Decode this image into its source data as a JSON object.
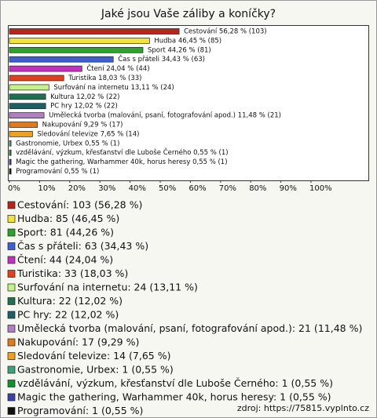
{
  "chart_data": {
    "type": "bar",
    "orientation": "horizontal",
    "title": "Jaké jsou Vaše záliby a koníčky?",
    "categories": [
      "Cestování: 103 (56,28 %)",
      "Hudba: 85 (46,45 %)",
      "Sport: 81 (44,26 %)",
      "Čas s přáteli: 63 (34,43 %)",
      "Čtení: 44 (24,04 %)",
      "Turistika: 33 (18,03 %)",
      "Surfování na internetu: 24 (13,11 %)",
      "Kultura: 22 (12,02 %)",
      "PC hry: 22 (12,02 %)",
      "Umělecká tvorba (malování, psaní, fotografování apod.): 21 (11,48 %)",
      "Nakupování: 17 (9,29 %)",
      "Sledování televize: 14 (7,65 %)",
      "Gastronomie, Urbex: 1 (0,55 %)",
      "vzdělávání, výzkum, křesťanství dle Luboše Černého: 1 (0,55 %)",
      "Magic the gathering, Warhammer 40k, horus heresy: 1 (0,55 %)",
      "Programování: 1 (0,55 %)"
    ],
    "values": [
      56.28,
      46.45,
      44.26,
      34.43,
      24.04,
      18.03,
      13.11,
      12.02,
      12.02,
      11.48,
      9.29,
      7.65,
      0.55,
      0.55,
      0.55,
      0.55
    ],
    "value_labels": [
      "Cestování 56,28 % (103)",
      "Hudba 46,45 % (85)",
      "Sport 44,26 % (81)",
      "Čas s přáteli 34,43 % (63)",
      "Čtení 24,04 % (44)",
      "Turistika 18,03 % (33)",
      "Surfování na internetu 13,11 % (24)",
      "Kultura 12,02 % (22)",
      "PC hry 12,02 % (22)",
      "Umělecká tvorba (malování, psaní, fotografování apod.) 11,48 % (21)",
      "Nakupování 9,29 % (17)",
      "Sledování televize 7,65 % (14)",
      "Gastronomie, Urbex 0,55 % (1)",
      "vzdělávání, výzkum, křesťanství dle Luboše Černého 0,55 % (1)",
      "Magic the gathering, Warhammer 40k, horus heresy 0,55 % (1)",
      "Programování 0,55 % (1)"
    ],
    "colors": [
      "#b8261b",
      "#f2e23c",
      "#2fa12f",
      "#3f5fd0",
      "#c22fc2",
      "#e0401e",
      "#c6f08a",
      "#1f7050",
      "#1f5f66",
      "#b07fc2",
      "#e07a1e",
      "#f0a020",
      "#3fa080",
      "#10902f",
      "#3f3fa8",
      "#111111"
    ],
    "xlim": [
      0,
      100
    ],
    "xticks": [
      {
        "value": 0,
        "label": "0%"
      },
      {
        "value": 10,
        "label": "10%"
      },
      {
        "value": 20,
        "label": "20%"
      },
      {
        "value": 30,
        "label": "30%"
      },
      {
        "value": 40,
        "label": "40%"
      },
      {
        "value": 50,
        "label": "50%"
      },
      {
        "value": 60,
        "label": "60%"
      },
      {
        "value": 70,
        "label": "70%"
      },
      {
        "value": 80,
        "label": "80%"
      },
      {
        "value": 90,
        "label": "90%"
      },
      {
        "value": 100,
        "label": "100%"
      }
    ],
    "source": "zdroj: https://75815.vyplnto.cz"
  }
}
